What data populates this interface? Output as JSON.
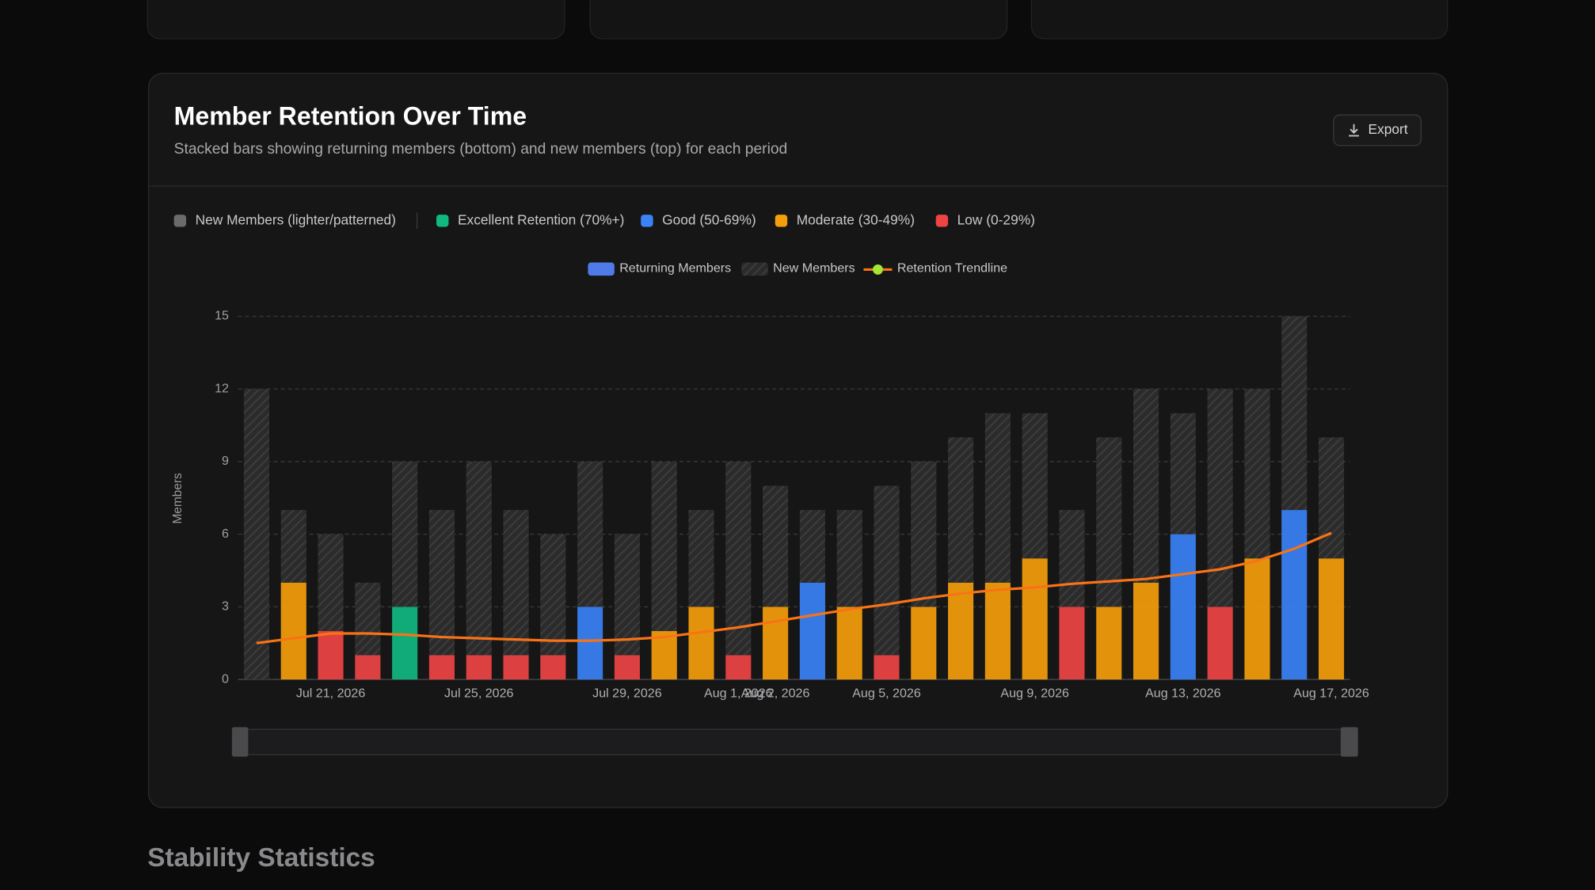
{
  "page": {
    "title": "Member Retention Over Time",
    "subtitle": "Stacked bars showing returning members (bottom) and new members (top) for each period",
    "export": "Export",
    "legend": [
      {
        "label": "New Members (lighter/patterned)",
        "color": "#6b6b6b"
      },
      {
        "label": "Excellent Retention (70%+)",
        "color": "#10b981"
      },
      {
        "label": "Good (50-69%)",
        "color": "#3b82f6"
      },
      {
        "label": "Moderate (30-49%)",
        "color": "#f59e0b"
      },
      {
        "label": "Low (0-29%)",
        "color": "#ef4444"
      }
    ],
    "section": "Stability Statistics"
  },
  "chart_data": {
    "type": "bar",
    "stacked": true,
    "ylabel": "Members",
    "categories": [
      null,
      null,
      "Jul 21, 2026",
      null,
      null,
      null,
      "Jul 25, 2026",
      null,
      null,
      null,
      "Jul 29, 2026",
      null,
      null,
      "Aug 1, 2026",
      "Aug 2, 2026",
      null,
      null,
      "Aug 5, 2026",
      null,
      null,
      null,
      "Aug 9, 2026",
      null,
      null,
      null,
      "Aug 13, 2026",
      null,
      null,
      null,
      "Aug 17, 2026"
    ],
    "ylim": [
      0,
      15
    ],
    "yticks": [
      0,
      3,
      6,
      9,
      12,
      15
    ],
    "grid": true,
    "series": [
      {
        "name": "Returning Members",
        "color": "#4f7be8",
        "values": [
          0,
          4,
          2,
          1,
          3,
          1,
          1,
          1,
          1,
          3,
          1,
          2,
          3,
          1,
          3,
          4,
          3,
          1,
          3,
          4,
          4,
          5,
          3,
          3,
          4,
          6,
          3,
          5,
          7,
          5
        ],
        "colors": [
          "#3b82f6",
          "#f59e0b",
          "#ef4444",
          "#ef4444",
          "#10b981",
          "#ef4444",
          "#ef4444",
          "#ef4444",
          "#ef4444",
          "#3b82f6",
          "#ef4444",
          "#f59e0b",
          "#f59e0b",
          "#ef4444",
          "#f59e0b",
          "#3b82f6",
          "#f59e0b",
          "#ef4444",
          "#f59e0b",
          "#f59e0b",
          "#f59e0b",
          "#f59e0b",
          "#ef4444",
          "#f59e0b",
          "#f59e0b",
          "#3b82f6",
          "#ef4444",
          "#f59e0b",
          "#3b82f6",
          "#f59e0b"
        ]
      },
      {
        "name": "New Members",
        "color": "#3a3a3a",
        "values": [
          12,
          3,
          4,
          3,
          6,
          6,
          8,
          6,
          5,
          6,
          5,
          7,
          4,
          8,
          5,
          3,
          4,
          7,
          6,
          6,
          7,
          6,
          4,
          7,
          8,
          5,
          9,
          7,
          8,
          5
        ]
      },
      {
        "name": "Retention Trendline",
        "type": "line",
        "color": "#f97316",
        "marker_color": "#a3e635",
        "values": [
          1.5,
          1.7,
          1.9,
          1.9,
          1.85,
          1.75,
          1.7,
          1.65,
          1.6,
          1.6,
          1.65,
          1.75,
          1.95,
          2.15,
          2.4,
          2.65,
          2.9,
          3.1,
          3.35,
          3.55,
          3.7,
          3.8,
          3.95,
          4.05,
          4.15,
          4.35,
          4.55,
          4.9,
          5.4,
          6.05
        ]
      }
    ]
  }
}
